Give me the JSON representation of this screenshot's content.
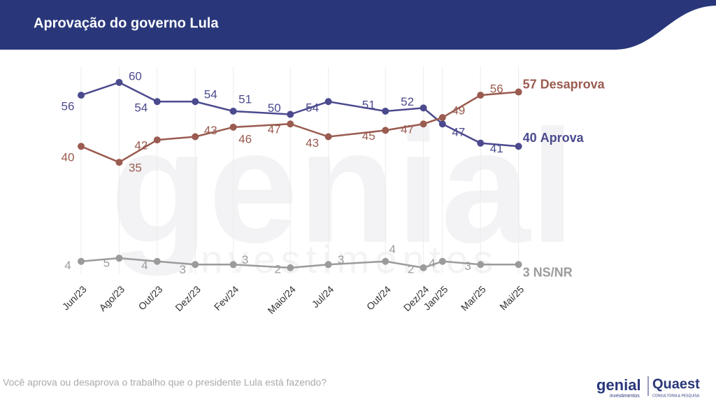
{
  "header": {
    "title": "Aprovação do governo Lula"
  },
  "chart_data": {
    "type": "line",
    "x": [
      {
        "value": "2023-06",
        "label": "Jun/23"
      },
      {
        "value": "2023-08",
        "label": "Ago/23"
      },
      {
        "value": "2023-10",
        "label": "Out/23"
      },
      {
        "value": "2023-12",
        "label": "Dez/23"
      },
      {
        "value": "2024-02",
        "label": "Fev/24"
      },
      {
        "value": "2024-05",
        "label": "Maio/24"
      },
      {
        "value": "2024-07",
        "label": "Jul/24"
      },
      {
        "value": "2024-10",
        "label": "Out/24"
      },
      {
        "value": "2024-12",
        "label": "Dez/24"
      },
      {
        "value": "2025-01",
        "label": "Jan/25"
      },
      {
        "value": "2025-03",
        "label": "Mar/25"
      },
      {
        "value": "2025-05",
        "label": "Mai/25"
      }
    ],
    "series": [
      {
        "name": "Aprova",
        "color": "#4b4a8e",
        "values": [
          56,
          60,
          54,
          54,
          51,
          50,
          54,
          51,
          52,
          47,
          41,
          40
        ]
      },
      {
        "name": "Desaprova",
        "color": "#9a5b50",
        "values": [
          40,
          35,
          42,
          43,
          46,
          47,
          43,
          45,
          47,
          49,
          56,
          57
        ]
      },
      {
        "name": "NS/NR",
        "color": "#9b9b9b",
        "values": [
          4,
          5,
          4,
          3,
          3,
          2,
          3,
          4,
          2,
          4,
          3,
          3
        ]
      }
    ],
    "ylim": [
      0,
      65
    ],
    "grid": true
  },
  "footer": {
    "question": "Você aprova ou desaprova o trabalho que o presidente Lula está fazendo?",
    "logo1": "genial",
    "logo1_sub": "investimentos",
    "logo2": "Quaest",
    "logo2_sub": "CONSULTORIA & PESQUISA"
  },
  "watermark": {
    "main": "genial",
    "sub": "investimentos"
  }
}
